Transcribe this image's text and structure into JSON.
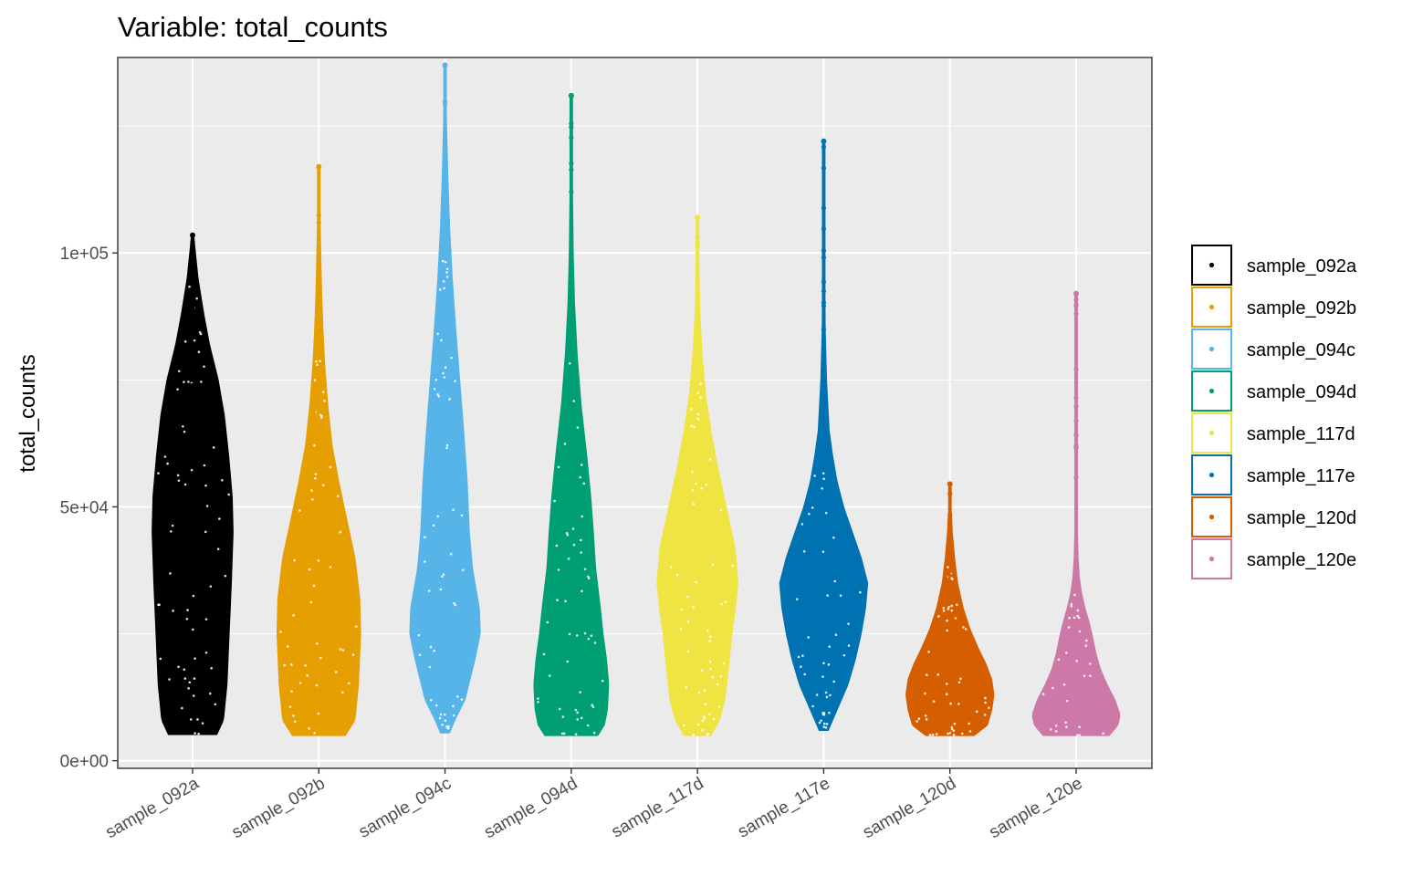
{
  "chart_data": {
    "type": "violin",
    "title": "Variable: total_counts",
    "xlabel": "",
    "ylabel": "total_counts",
    "ylim": [
      -1500,
      138500
    ],
    "yticks": [
      0,
      50000,
      100000
    ],
    "ytick_labels": [
      "0e+00",
      "5e+04",
      "1e+05"
    ],
    "y_minor_gridlines": [
      25000,
      75000,
      125000
    ],
    "categories": [
      "sample_092a",
      "sample_092b",
      "sample_094c",
      "sample_094d",
      "sample_117d",
      "sample_117e",
      "sample_120d",
      "sample_120e"
    ],
    "grid": true,
    "panel_background": "#ebebeb",
    "legend_position": "right",
    "legend_entries": [
      "sample_092a",
      "sample_092b",
      "sample_094c",
      "sample_094d",
      "sample_117d",
      "sample_117e",
      "sample_120d",
      "sample_120e"
    ],
    "series": [
      {
        "name": "sample_092a",
        "color": "#000000",
        "min": 5200,
        "max": 103500,
        "density_y": [
          5200,
          8000,
          15000,
          25000,
          35000,
          45000,
          52000,
          60000,
          68000,
          75000,
          82000,
          88000,
          95000,
          100000,
          103500
        ],
        "density_w": [
          0.55,
          0.7,
          0.78,
          0.83,
          0.88,
          0.92,
          0.9,
          0.82,
          0.72,
          0.58,
          0.38,
          0.25,
          0.12,
          0.06,
          0.02
        ]
      },
      {
        "name": "sample_092b",
        "color": "#E69F00",
        "min": 5000,
        "max": 117000,
        "density_y": [
          5000,
          8000,
          15000,
          25000,
          32000,
          40000,
          48000,
          55000,
          62000,
          70000,
          78000,
          85000,
          92000,
          100000,
          108000,
          117000
        ],
        "density_w": [
          0.6,
          0.82,
          0.9,
          0.95,
          0.93,
          0.82,
          0.62,
          0.45,
          0.3,
          0.2,
          0.13,
          0.09,
          0.06,
          0.04,
          0.02,
          0.01
        ]
      },
      {
        "name": "sample_094c",
        "color": "#56B4E9",
        "min": 5500,
        "max": 137000,
        "density_y": [
          5500,
          8000,
          12000,
          20000,
          25000,
          30000,
          38000,
          45000,
          55000,
          65000,
          75000,
          85000,
          95000,
          105000,
          115000,
          125000,
          137000
        ],
        "density_w": [
          0.1,
          0.22,
          0.45,
          0.68,
          0.8,
          0.78,
          0.62,
          0.55,
          0.5,
          0.42,
          0.33,
          0.24,
          0.16,
          0.1,
          0.06,
          0.03,
          0.01
        ]
      },
      {
        "name": "sample_094d",
        "color": "#009E73",
        "min": 5000,
        "max": 131000,
        "density_y": [
          5000,
          7000,
          10000,
          15000,
          20000,
          25000,
          30000,
          38000,
          45000,
          52000,
          60000,
          70000,
          80000,
          90000,
          100000,
          115000,
          131000
        ],
        "density_w": [
          0.6,
          0.75,
          0.82,
          0.85,
          0.8,
          0.72,
          0.66,
          0.55,
          0.5,
          0.44,
          0.35,
          0.22,
          0.13,
          0.07,
          0.04,
          0.02,
          0.01
        ]
      },
      {
        "name": "sample_117d",
        "color": "#F0E442",
        "min": 5000,
        "max": 107000,
        "density_y": [
          5000,
          8000,
          12000,
          18000,
          25000,
          30000,
          35000,
          42000,
          50000,
          58000,
          65000,
          72000,
          80000,
          88000,
          95000,
          107000
        ],
        "density_w": [
          0.3,
          0.5,
          0.62,
          0.7,
          0.78,
          0.86,
          0.92,
          0.85,
          0.65,
          0.45,
          0.3,
          0.18,
          0.1,
          0.05,
          0.03,
          0.01
        ]
      },
      {
        "name": "sample_117e",
        "color": "#0072B2",
        "min": 6000,
        "max": 122000,
        "density_y": [
          6000,
          10000,
          15000,
          20000,
          25000,
          30000,
          35000,
          40000,
          45000,
          50000,
          55000,
          60000,
          65000,
          75000,
          85000,
          100000,
          122000
        ],
        "density_w": [
          0.1,
          0.3,
          0.55,
          0.72,
          0.85,
          0.95,
          1.0,
          0.85,
          0.65,
          0.45,
          0.3,
          0.2,
          0.12,
          0.06,
          0.03,
          0.015,
          0.005
        ]
      },
      {
        "name": "sample_120d",
        "color": "#D55E00",
        "min": 5000,
        "max": 54500,
        "density_y": [
          5000,
          7000,
          10000,
          13000,
          16000,
          19000,
          22000,
          26000,
          30000,
          35000,
          40000,
          45000,
          50000,
          54500
        ],
        "density_w": [
          0.55,
          0.85,
          0.95,
          1.0,
          0.95,
          0.82,
          0.65,
          0.45,
          0.3,
          0.17,
          0.1,
          0.05,
          0.02,
          0.005
        ]
      },
      {
        "name": "sample_120e",
        "color": "#CC79A7",
        "min": 5000,
        "max": 92000,
        "density_y": [
          5000,
          7000,
          9000,
          12000,
          15000,
          18000,
          21000,
          24000,
          27000,
          30000,
          33000,
          36000,
          40000,
          45000,
          50000,
          60000,
          75000,
          92000
        ],
        "density_w": [
          0.75,
          0.95,
          1.0,
          0.88,
          0.7,
          0.55,
          0.45,
          0.38,
          0.3,
          0.2,
          0.12,
          0.07,
          0.04,
          0.025,
          0.015,
          0.01,
          0.005,
          0.003
        ]
      }
    ]
  }
}
